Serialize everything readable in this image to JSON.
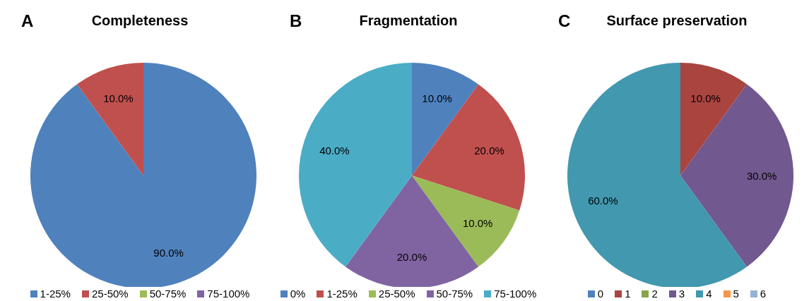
{
  "chart_data": [
    {
      "type": "pie",
      "title": "Completeness",
      "annotations": [
        "A"
      ],
      "categories": [
        "1-25%",
        "25-50%",
        "50-75%",
        "75-100%"
      ],
      "values": [
        90,
        10,
        0,
        0
      ],
      "colors": [
        "#4f81bd",
        "#c0504d",
        "#9bbb59",
        "#8064a2"
      ],
      "value_labels": [
        "90.0%",
        "10.0%",
        null,
        null
      ],
      "legend": "bottom"
    },
    {
      "type": "pie",
      "title": "Fragmentation",
      "annotations": [
        "B"
      ],
      "categories": [
        "0%",
        "1-25%",
        "25-50%",
        "50-75%",
        "75-100%"
      ],
      "values": [
        10,
        20,
        10,
        20,
        40
      ],
      "colors": [
        "#4f81bd",
        "#c0504d",
        "#9bbb59",
        "#8064a2",
        "#4bacc6"
      ],
      "value_labels": [
        "10.0%",
        "20.0%",
        "10.0%",
        "20.0%",
        "40.0%"
      ],
      "legend": "bottom"
    },
    {
      "type": "pie",
      "title": "Surface preservation",
      "annotations": [
        "C"
      ],
      "categories": [
        "0",
        "1",
        "2",
        "3",
        "4",
        "5",
        "6"
      ],
      "values": [
        0,
        10,
        0,
        30,
        60,
        0,
        0
      ],
      "colors": [
        "#4f81bd",
        "#a9443f",
        "#86a44a",
        "#71588f",
        "#4198af",
        "#f79646",
        "#95b3d7"
      ],
      "value_labels": [
        null,
        "10.0%",
        null,
        "30.0%",
        "60.0%",
        null,
        null
      ],
      "legend": "bottom"
    }
  ]
}
